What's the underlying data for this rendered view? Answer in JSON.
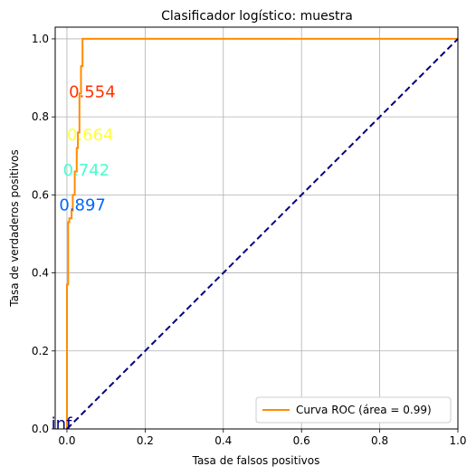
{
  "chart_data": {
    "type": "line",
    "title": "Clasificador logístico: muestra",
    "xlabel": "Tasa de falsos positivos",
    "ylabel": "Tasa de verdaderos positivos",
    "xlim": [
      -0.03,
      1.0
    ],
    "ylim": [
      0.0,
      1.03
    ],
    "x_ticks": [
      "0.0",
      "0.2",
      "0.4",
      "0.6",
      "0.8",
      "1.0"
    ],
    "y_ticks": [
      "0.0",
      "0.2",
      "0.4",
      "0.6",
      "0.8",
      "1.0"
    ],
    "grid": true,
    "legend_position": "bottom-right",
    "series": [
      {
        "name": "Curva ROC (área = 0.99)",
        "color": "#ff8c00",
        "style": "solid",
        "x": [
          0.0,
          0.0,
          0.0,
          0.003,
          0.003,
          0.006,
          0.006,
          0.012,
          0.012,
          0.015,
          0.015,
          0.02,
          0.02,
          0.025,
          0.025,
          0.028,
          0.028,
          0.032,
          0.032,
          0.036,
          0.036,
          0.04,
          0.04,
          1.0
        ],
        "y": [
          0.0,
          0.2,
          0.37,
          0.37,
          0.53,
          0.53,
          0.54,
          0.54,
          0.56,
          0.56,
          0.6,
          0.6,
          0.66,
          0.66,
          0.72,
          0.72,
          0.76,
          0.76,
          0.86,
          0.86,
          0.93,
          0.93,
          1.0,
          1.0
        ]
      },
      {
        "name": "",
        "color": "#000080",
        "style": "dashed",
        "x": [
          0.0,
          1.0
        ],
        "y": [
          0.0,
          1.0
        ]
      }
    ],
    "annotations": [
      {
        "text": "inf",
        "x": -0.04,
        "y": 0.0,
        "color": "#000080"
      },
      {
        "text": "0.897",
        "x": -0.02,
        "y": 0.56,
        "color": "#0066ff"
      },
      {
        "text": "0.742",
        "x": -0.01,
        "y": 0.65,
        "color": "#44ffcc"
      },
      {
        "text": "0.664",
        "x": 0.0,
        "y": 0.74,
        "color": "#ffff33"
      },
      {
        "text": "0.554",
        "x": 0.005,
        "y": 0.85,
        "color": "#ff3300"
      }
    ]
  }
}
